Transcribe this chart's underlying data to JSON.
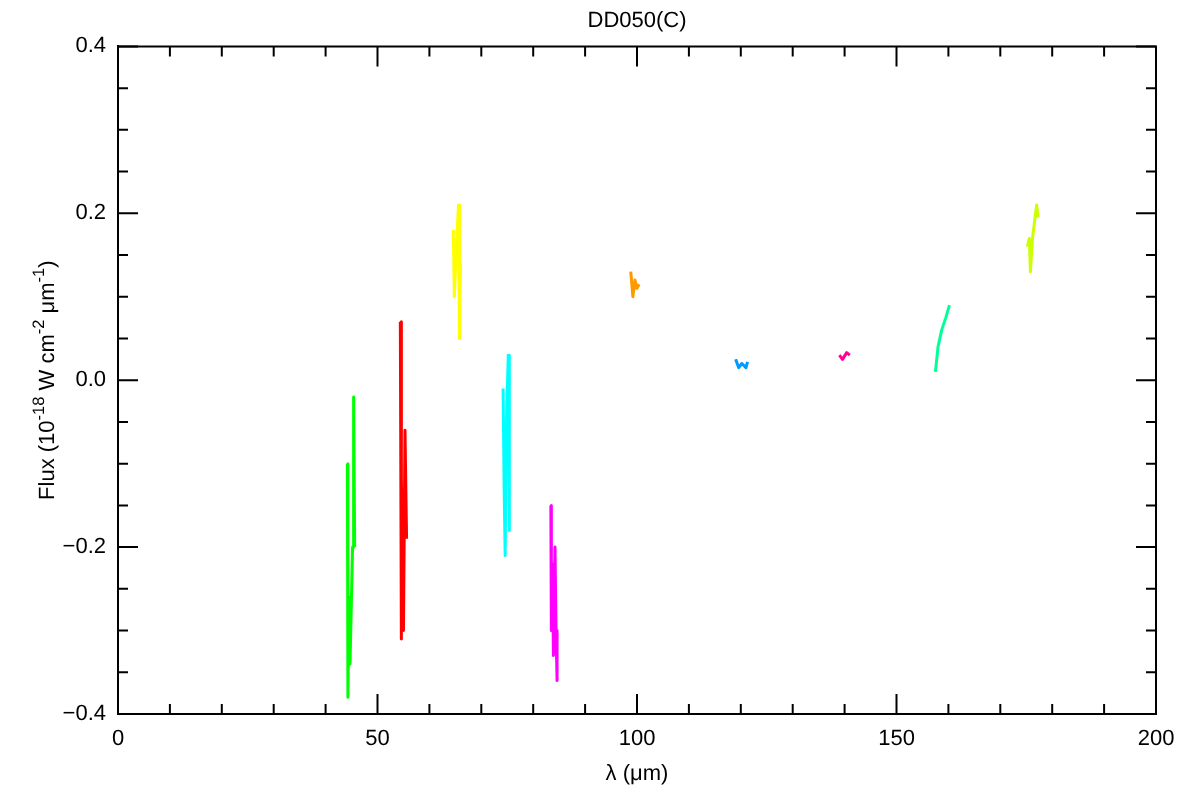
{
  "chart_data": {
    "type": "line",
    "title": "DD050(C)",
    "xlabel": "λ (μm)",
    "ylabel": "Flux (10$^{-18}$ W cm$^{-2}$ μm$^{-1}$)",
    "marker": "none",
    "line_style": "solid",
    "xlim": [
      0,
      200
    ],
    "ylim": [
      -0.4,
      0.4
    ],
    "xticks": [
      0,
      {
        "value": 10,
        "label": null
      },
      {
        "value": 20,
        "label": null
      },
      {
        "value": 30,
        "label": null
      },
      {
        "value": 40,
        "label": null
      },
      50,
      {
        "value": 60,
        "label": null
      },
      {
        "value": 70,
        "label": null
      },
      {
        "value": 80,
        "label": null
      },
      {
        "value": 90,
        "label": null
      },
      100,
      {
        "value": 110,
        "label": null
      },
      {
        "value": 120,
        "label": null
      },
      {
        "value": 130,
        "label": null
      },
      {
        "value": 140,
        "label": null
      },
      150,
      {
        "value": 160,
        "label": null
      },
      {
        "value": 170,
        "label": null
      },
      {
        "value": 180,
        "label": null
      },
      {
        "value": 190,
        "label": null
      },
      200
    ],
    "yticks": [
      {
        "value": -0.4,
        "label": "−0.4"
      },
      {
        "value": -0.35,
        "label": null
      },
      {
        "value": -0.3,
        "label": null
      },
      {
        "value": -0.25,
        "label": null
      },
      {
        "value": -0.2,
        "label": "−0.2"
      },
      {
        "value": -0.15,
        "label": null
      },
      {
        "value": -0.1,
        "label": null
      },
      {
        "value": -0.05,
        "label": null
      },
      {
        "value": 0,
        "label": "0.0"
      },
      {
        "value": 0.05,
        "label": null
      },
      {
        "value": 0.1,
        "label": null
      },
      {
        "value": 0.15,
        "label": null
      },
      0.2,
      {
        "value": 0.25,
        "label": null
      },
      {
        "value": 0.3,
        "label": null
      },
      {
        "value": 0.35,
        "label": null
      },
      0.4
    ],
    "series": [
      {
        "color": "#00ff00",
        "x": [
          44.2,
          44.3,
          44.5,
          44.7,
          45.2,
          45.4,
          45.6
        ],
        "values": [
          -0.1,
          -0.38,
          -0.26,
          -0.34,
          -0.2,
          -0.02,
          -0.2
        ]
      },
      {
        "color": "#ff0000",
        "x": [
          54.4,
          54.5,
          54.7,
          55.0,
          55.3,
          55.6
        ],
        "values": [
          0.07,
          -0.31,
          -0.12,
          -0.3,
          -0.06,
          -0.19
        ]
      },
      {
        "color": "#ffff00",
        "x": [
          64.6,
          64.8,
          65.2,
          65.6,
          65.8,
          66.0
        ],
        "values": [
          0.18,
          0.1,
          0.16,
          0.21,
          0.05,
          0.14
        ]
      },
      {
        "color": "#00ffff",
        "x": [
          74.2,
          74.4,
          74.6,
          74.8,
          75.2,
          75.4
        ],
        "values": [
          -0.01,
          -0.13,
          -0.21,
          -0.06,
          0.03,
          -0.18
        ]
      },
      {
        "color": "#ff00ff",
        "x": [
          83.4,
          83.5,
          83.7,
          83.9,
          84.2,
          84.4,
          84.6
        ],
        "values": [
          -0.15,
          -0.3,
          -0.22,
          -0.33,
          -0.2,
          -0.3,
          -0.36
        ]
      },
      {
        "color": "#ff9900",
        "x": [
          98.8,
          99.2,
          99.6,
          100.0,
          100.4
        ],
        "values": [
          0.13,
          0.1,
          0.12,
          0.11,
          0.115
        ]
      },
      {
        "color": "#0099ff",
        "x": [
          119.0,
          119.6,
          120.2,
          121.0,
          121.3
        ],
        "values": [
          0.025,
          0.015,
          0.02,
          0.015,
          0.022
        ]
      },
      {
        "color": "#ff0099",
        "x": [
          139.0,
          139.6,
          140.4,
          141.0
        ],
        "values": [
          0.03,
          0.025,
          0.033,
          0.03
        ]
      },
      {
        "color": "#00ff99",
        "x": [
          157.5,
          158.0,
          158.7,
          159.5,
          160.2
        ],
        "values": [
          0.01,
          0.04,
          0.06,
          0.075,
          0.09
        ]
      },
      {
        "color": "#ccff00",
        "x": [
          175.2,
          175.6,
          175.8,
          176.2,
          176.6,
          177.0,
          177.3
        ],
        "values": [
          0.16,
          0.17,
          0.13,
          0.17,
          0.19,
          0.21,
          0.195
        ]
      }
    ]
  }
}
